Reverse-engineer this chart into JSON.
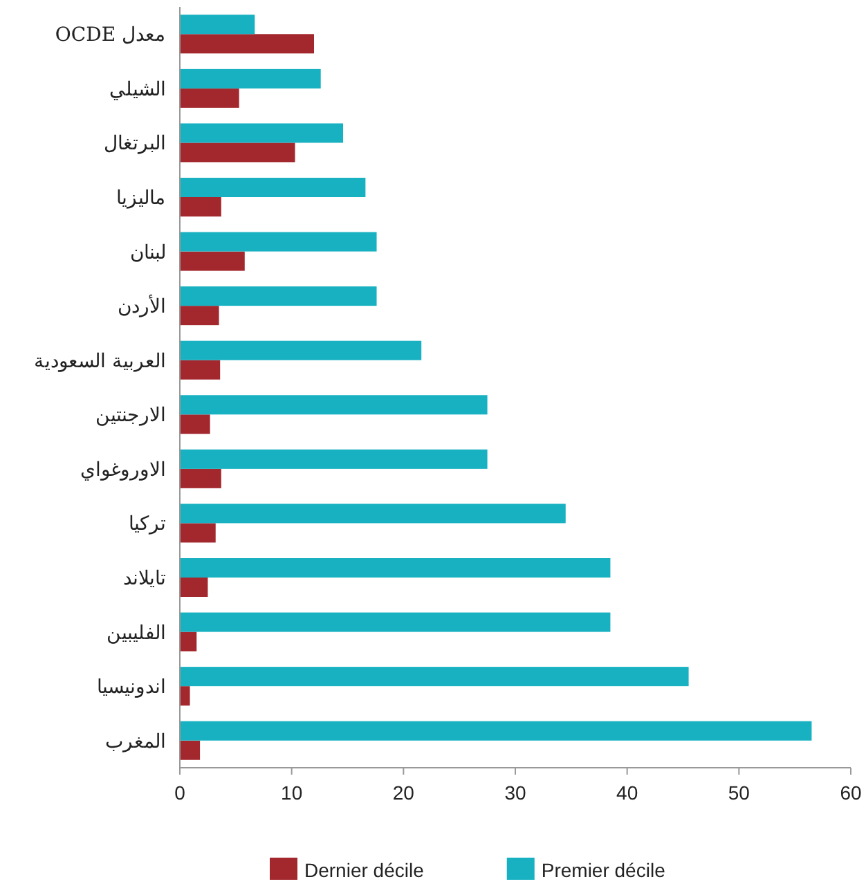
{
  "chart_data": {
    "type": "bar",
    "orientation": "horizontal",
    "categories": [
      "معدل OCDE",
      "الشيلي",
      "البرتغال",
      "ماليزيا",
      "لبنان",
      "الأردن",
      "العربية السعودية",
      "الارجنتين",
      "الاوروغواي",
      "تركيا",
      "تايلاند",
      "الفليبين",
      "اندونيسيا",
      "المغرب"
    ],
    "series": [
      {
        "name": "Dernier décile",
        "color": "#a3282e",
        "values": [
          12,
          5.3,
          10.3,
          3.7,
          5.8,
          3.5,
          3.6,
          2.7,
          3.7,
          3.2,
          2.5,
          1.5,
          0.9,
          1.8
        ]
      },
      {
        "name": "Premier décile",
        "color": "#17b1c1",
        "values": [
          6.7,
          12.6,
          14.6,
          16.6,
          17.6,
          17.6,
          21.6,
          27.5,
          27.5,
          34.5,
          38.5,
          38.5,
          45.5,
          56.5
        ]
      }
    ],
    "xlim": [
      0,
      60
    ],
    "xticks": [
      0,
      10,
      20,
      30,
      40,
      50,
      60
    ],
    "legend": "bottom"
  }
}
